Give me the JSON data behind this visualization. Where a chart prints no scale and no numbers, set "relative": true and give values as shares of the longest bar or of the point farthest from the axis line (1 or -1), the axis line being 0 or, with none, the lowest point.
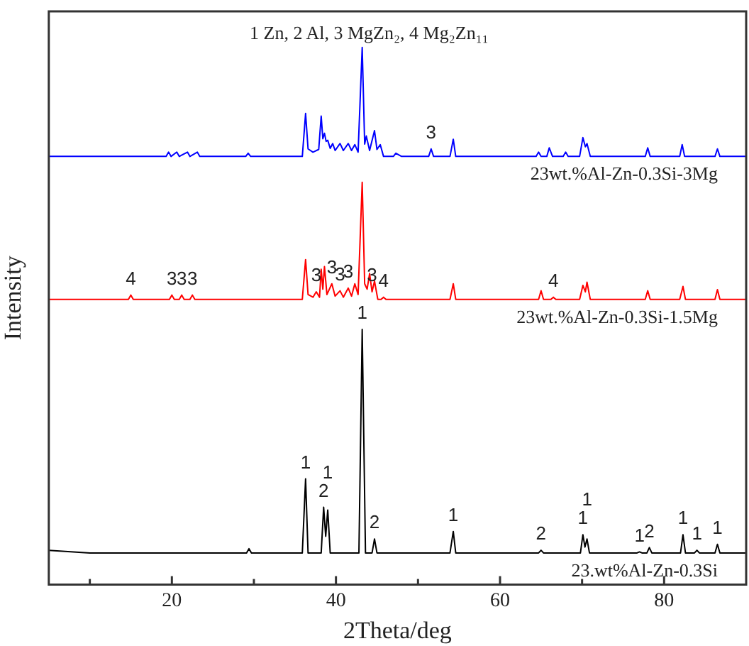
{
  "chart_data": {
    "type": "line",
    "relative": true,
    "xlabel": "2Theta/deg",
    "ylabel": "Intensity",
    "xlim": [
      5,
      90
    ],
    "xticks": [
      {
        "value": 10,
        "label": null
      },
      20,
      {
        "value": 30,
        "label": null
      },
      40,
      {
        "value": 50,
        "label": null
      },
      60,
      {
        "value": 70,
        "label": null
      },
      80
    ],
    "legend": false,
    "grid": false,
    "marker": "none",
    "line_style": "solid",
    "series": [
      {
        "name": "23wt.%Al-Zn-0.3Si-3Mg",
        "color": "#0000ff",
        "x": [
          5,
          15,
          19.3,
          19.6,
          19.9,
          20.6,
          20.9,
          21.9,
          22.2,
          23.1,
          23.4,
          29,
          29.3,
          29.6,
          35.9,
          36.3,
          36.6,
          37.2,
          37.9,
          38.2,
          38.4,
          38.6,
          38.8,
          39.0,
          39.3,
          39.6,
          39.9,
          40.5,
          40.9,
          41.5,
          41.9,
          42.3,
          42.7,
          43.2,
          43.5,
          43.7,
          44.1,
          44.7,
          45.0,
          45.4,
          45.8,
          47,
          47.3,
          48,
          51.3,
          51.6,
          51.9,
          53.9,
          54.3,
          54.6,
          64.4,
          64.7,
          65,
          65.7,
          66,
          66.4,
          67.7,
          68,
          68.3,
          69.7,
          70.1,
          70.4,
          70.6,
          71,
          77.7,
          78,
          78.3,
          81.9,
          82.2,
          82.5,
          86.2,
          86.5,
          86.8,
          90
        ],
        "values": [
          0.797,
          0.797,
          0.797,
          0.805,
          0.797,
          0.805,
          0.797,
          0.805,
          0.797,
          0.805,
          0.797,
          0.797,
          0.803,
          0.797,
          0.797,
          0.877,
          0.811,
          0.805,
          0.81,
          0.872,
          0.83,
          0.84,
          0.825,
          0.827,
          0.812,
          0.821,
          0.808,
          0.821,
          0.808,
          0.821,
          0.808,
          0.819,
          0.805,
          1,
          0.82,
          0.835,
          0.808,
          0.845,
          0.81,
          0.819,
          0.797,
          0.797,
          0.803,
          0.797,
          0.797,
          0.811,
          0.797,
          0.797,
          0.829,
          0.797,
          0.797,
          0.805,
          0.797,
          0.797,
          0.813,
          0.797,
          0.797,
          0.805,
          0.797,
          0.797,
          0.832,
          0.815,
          0.821,
          0.797,
          0.797,
          0.813,
          0.797,
          0.797,
          0.819,
          0.797,
          0.797,
          0.811,
          0.797,
          0.797
        ]
      },
      {
        "name": "23wt.%Al-Zn-0.3Si-1.5Mg",
        "color": "#ff0000",
        "x": [
          5,
          14.7,
          15,
          15.3,
          19.7,
          20,
          20.3,
          20.9,
          21.2,
          21.5,
          22.2,
          22.5,
          22.8,
          29,
          35.9,
          36.3,
          36.6,
          37.2,
          37.6,
          38.0,
          38.2,
          38.4,
          38.6,
          38.9,
          39.5,
          39.9,
          40.5,
          40.9,
          41.5,
          41.9,
          42.3,
          42.7,
          43.2,
          43.5,
          43.8,
          44.1,
          44.4,
          44.7,
          45.1,
          45.5,
          45.8,
          46.1,
          53.9,
          54.3,
          54.6,
          64.7,
          65,
          65.3,
          66.2,
          66.5,
          66.8,
          69.7,
          70.1,
          70.4,
          70.6,
          71,
          77.7,
          78,
          78.3,
          81.9,
          82.3,
          82.6,
          86.2,
          86.5,
          86.8,
          90
        ],
        "values": [
          0.531,
          0.531,
          0.539,
          0.531,
          0.531,
          0.539,
          0.531,
          0.531,
          0.539,
          0.531,
          0.531,
          0.539,
          0.531,
          0.531,
          0.531,
          0.605,
          0.54,
          0.535,
          0.545,
          0.535,
          0.587,
          0.55,
          0.592,
          0.54,
          0.56,
          0.537,
          0.547,
          0.535,
          0.552,
          0.537,
          0.56,
          0.54,
          0.749,
          0.56,
          0.55,
          0.579,
          0.545,
          0.565,
          0.531,
          0.531,
          0.535,
          0.531,
          0.531,
          0.56,
          0.531,
          0.531,
          0.547,
          0.531,
          0.531,
          0.535,
          0.531,
          0.531,
          0.557,
          0.545,
          0.563,
          0.531,
          0.531,
          0.547,
          0.531,
          0.531,
          0.555,
          0.531,
          0.531,
          0.549,
          0.531,
          0.531
        ]
      },
      {
        "name": "23.wt%Al-Zn-0.3Si",
        "color": "#000000",
        "x": [
          5,
          10,
          29.1,
          29.4,
          29.7,
          35.9,
          36.3,
          36.6,
          38.2,
          38.5,
          38.75,
          39.0,
          39.3,
          42.8,
          43.2,
          43.6,
          44.4,
          44.7,
          45.0,
          53.9,
          54.3,
          54.6,
          64.7,
          65,
          65.3,
          69.8,
          70.1,
          70.35,
          70.6,
          70.9,
          76.7,
          77,
          77.3,
          77.9,
          78.2,
          78.5,
          82.0,
          82.3,
          82.6,
          83.7,
          84,
          84.3,
          86.2,
          86.5,
          86.8,
          90
        ],
        "values": [
          0.064,
          0.059,
          0.059,
          0.067,
          0.059,
          0.059,
          0.197,
          0.059,
          0.059,
          0.144,
          0.09,
          0.139,
          0.059,
          0.059,
          0.475,
          0.059,
          0.059,
          0.085,
          0.059,
          0.059,
          0.099,
          0.059,
          0.059,
          0.064,
          0.059,
          0.059,
          0.093,
          0.07,
          0.085,
          0.059,
          0.059,
          0.061,
          0.059,
          0.059,
          0.069,
          0.059,
          0.059,
          0.093,
          0.059,
          0.059,
          0.064,
          0.059,
          0.059,
          0.075,
          0.059,
          0.059
        ]
      }
    ],
    "annotations": [
      "1 Zn, 2 Al, 3 MgZn₂, 4 Mg₂Zn₁₁",
      {
        "text": "1",
        "x": 36.3,
        "y": 0.197
      },
      {
        "text": "2",
        "x": 38.5,
        "y": 0.144
      },
      {
        "text": "1",
        "x": 39.0,
        "y": 0.139
      },
      {
        "text": "1",
        "x": 43.2,
        "y": 0.475
      },
      {
        "text": "2",
        "x": 44.7,
        "y": 0.085
      },
      {
        "text": "1",
        "x": 54.3,
        "y": 0.099
      },
      {
        "text": "2",
        "x": 65,
        "y": 0.064
      },
      {
        "text": "1",
        "x": 70.1,
        "y": 0.093
      },
      {
        "text": "1",
        "x": 70.6,
        "y": 0.085
      },
      {
        "text": "1",
        "x": 77,
        "y": 0.061
      },
      {
        "text": "2",
        "x": 78.2,
        "y": 0.069
      },
      {
        "text": "1",
        "x": 82.3,
        "y": 0.093
      },
      {
        "text": "1",
        "x": 84,
        "y": 0.064
      },
      {
        "text": "1",
        "x": 86.5,
        "y": 0.075
      },
      {
        "text": "4",
        "x": 15,
        "y": 0.539
      },
      {
        "text": "3",
        "x": 20,
        "y": 0.539
      },
      {
        "text": "3",
        "x": 21.2,
        "y": 0.539
      },
      {
        "text": "3",
        "x": 22.5,
        "y": 0.539
      },
      {
        "text": "3",
        "x": 37.6,
        "y": 0.545
      },
      {
        "text": "3",
        "x": 39.5,
        "y": 0.56
      },
      {
        "text": "3",
        "x": 40.5,
        "y": 0.547
      },
      {
        "text": "3",
        "x": 41.5,
        "y": 0.552
      },
      {
        "text": "3",
        "x": 44.4,
        "y": 0.545
      },
      {
        "text": "4",
        "x": 45.8,
        "y": 0.535
      },
      {
        "text": "4",
        "x": 66.5,
        "y": 0.535
      },
      {
        "text": "3",
        "x": 51.6,
        "y": 0.811
      }
    ]
  }
}
